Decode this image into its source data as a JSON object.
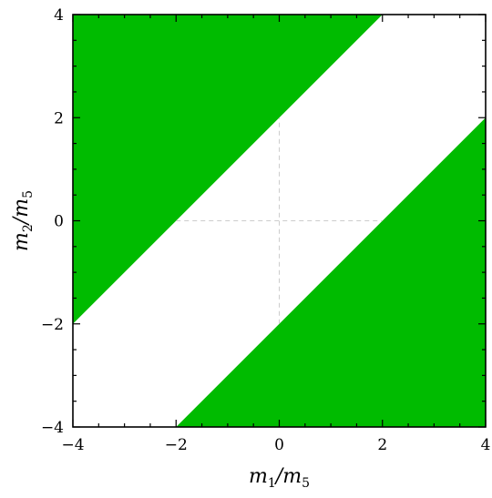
{
  "chart_data": {
    "type": "area",
    "title": "",
    "xlabel": "m1/m5",
    "ylabel": "m2/m5",
    "xlim": [
      -4,
      4
    ],
    "ylim": [
      -4,
      4
    ],
    "xticks": [
      -4,
      -2,
      0,
      2,
      4
    ],
    "yticks": [
      -4,
      -2,
      0,
      2,
      4
    ],
    "xtick_labels": [
      "−4",
      "−2",
      "0",
      "2",
      "4"
    ],
    "ytick_labels": [
      "−4",
      "−2",
      "0",
      "2",
      "4"
    ],
    "fill_color": "#00bb00",
    "background_color": "#ffffff",
    "grid": "dashed reference lines at x=0 and y=0 within the unshaded band",
    "regions": [
      {
        "description": "shaded region y > x + 2",
        "polygon": [
          [
            -4,
            -2
          ],
          [
            -4,
            4
          ],
          [
            2,
            4
          ]
        ]
      },
      {
        "description": "shaded region y < x - 2",
        "polygon": [
          [
            -2,
            -4
          ],
          [
            4,
            -4
          ],
          [
            4,
            2
          ]
        ]
      }
    ],
    "reference_lines": [
      {
        "from": [
          0,
          -2
        ],
        "to": [
          0,
          2
        ]
      },
      {
        "from": [
          -2,
          0
        ],
        "to": [
          2,
          0
        ]
      }
    ]
  }
}
